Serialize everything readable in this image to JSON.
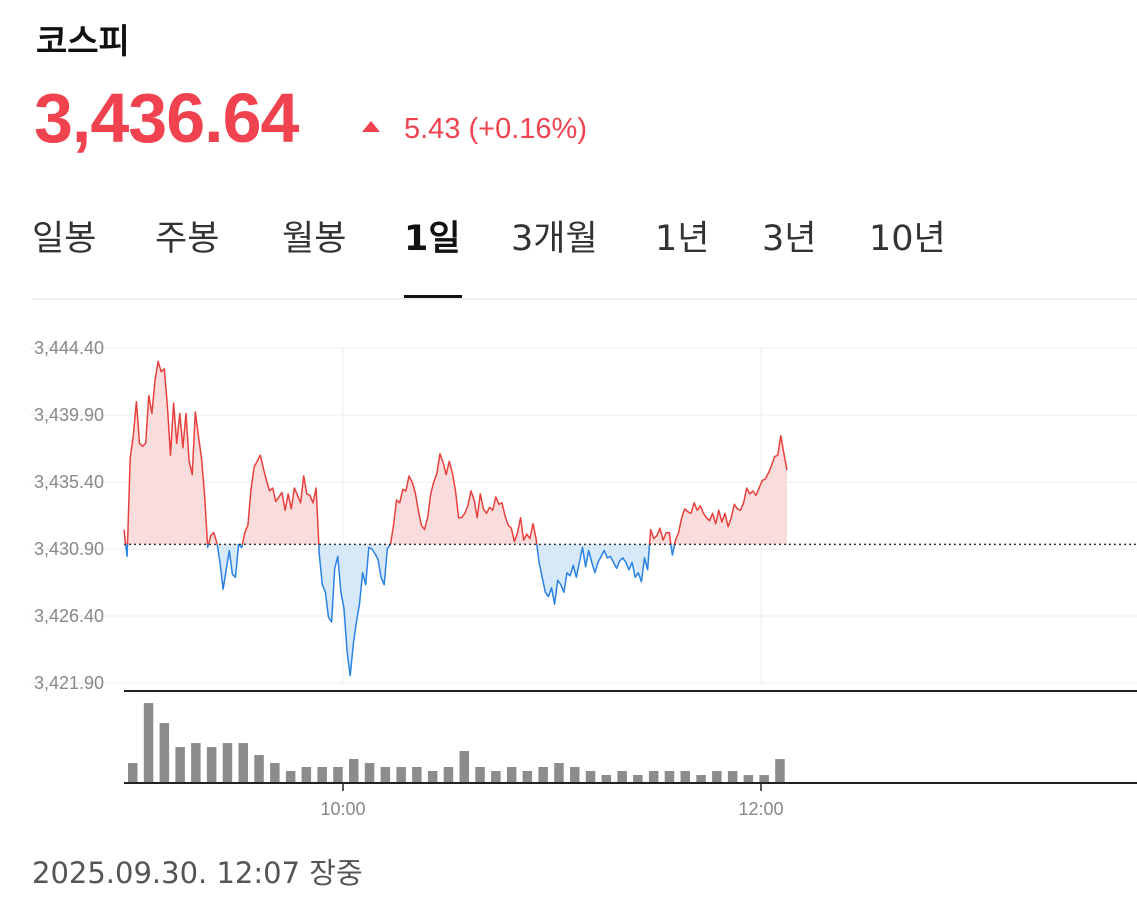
{
  "header": {
    "title": "코스피",
    "price": "3,436.64",
    "change": "5.43 (+0.16%)",
    "up_color": "#f0434f"
  },
  "tabs": [
    {
      "label": "일봉",
      "active": false
    },
    {
      "label": "주봉",
      "active": false
    },
    {
      "label": "월봉",
      "active": false
    },
    {
      "label": "1일",
      "active": true
    },
    {
      "label": "3개월",
      "active": false
    },
    {
      "label": "1년",
      "active": false
    },
    {
      "label": "3년",
      "active": false
    },
    {
      "label": "10년",
      "active": false
    }
  ],
  "footer": {
    "timestamp": "2025.09.30. 12:07 장중"
  },
  "chart_data": {
    "type": "area",
    "y_ticks": [
      "3,444.40",
      "3,439.90",
      "3,435.40",
      "3,430.90",
      "3,426.40",
      "3,421.90"
    ],
    "ylim": [
      3421.9,
      3444.4
    ],
    "x_ticks": [
      "10:00",
      "12:00"
    ],
    "baseline": 3431.21,
    "colors": {
      "up_line": "#e8413d",
      "up_fill": "#fbdcdc",
      "down_line": "#2a82e4",
      "down_fill": "#d7e8f9",
      "volume": "#8c8c8c"
    },
    "series": [
      {
        "values": [
          3432.2,
          3430.4,
          3437.0,
          3438.5,
          3440.8,
          3438.0,
          3437.8,
          3438.0,
          3441.2,
          3440.0,
          3442.2,
          3443.5,
          3442.8,
          3443.0,
          3440.5,
          3437.2,
          3440.7,
          3438.0,
          3440.0,
          3437.7,
          3440.0,
          3436.8,
          3435.9,
          3440.1,
          3438.5,
          3437.0,
          3434.5,
          3431.0,
          3431.8,
          3432.0,
          3431.3,
          3430.0,
          3428.2,
          3429.5,
          3430.8,
          3429.2,
          3429.0,
          3431.2,
          3431.0,
          3432.0,
          3432.5,
          3434.9,
          3436.4,
          3436.8,
          3437.2,
          3436.3,
          3435.5,
          3434.8,
          3435.0,
          3434.1,
          3434.4,
          3434.7,
          3433.5,
          3434.6,
          3433.6,
          3435.0,
          3434.5,
          3434.0,
          3435.8,
          3434.6,
          3434.5,
          3434.0,
          3435.0,
          3430.6,
          3428.5,
          3428.0,
          3426.3,
          3426.0,
          3429.6,
          3430.4,
          3428.0,
          3426.9,
          3424.0,
          3422.4,
          3424.5,
          3426.0,
          3427.2,
          3429.3,
          3428.5,
          3431.0,
          3430.9,
          3430.6,
          3430.2,
          3429.0,
          3428.5,
          3430.9,
          3431.2,
          3432.5,
          3434.2,
          3434.0,
          3434.9,
          3434.8,
          3435.8,
          3435.4,
          3434.7,
          3433.5,
          3432.5,
          3432.2,
          3433.0,
          3434.6,
          3435.4,
          3436.0,
          3437.3,
          3436.7,
          3435.9,
          3436.8,
          3436.0,
          3434.8,
          3433.0,
          3433.0,
          3433.3,
          3433.8,
          3434.8,
          3434.2,
          3433.0,
          3434.6,
          3433.6,
          3433.3,
          3433.7,
          3433.5,
          3434.4,
          3433.9,
          3434.0,
          3433.1,
          3432.5,
          3432.3,
          3431.4,
          3432.0,
          3433.0,
          3431.5,
          3431.9,
          3431.6,
          3432.6,
          3431.6,
          3430.0,
          3429.0,
          3428.0,
          3427.7,
          3428.3,
          3427.2,
          3428.8,
          3428.5,
          3428.0,
          3429.3,
          3429.1,
          3429.8,
          3429.0,
          3430.0,
          3431.0,
          3429.7,
          3430.8,
          3430.0,
          3429.3,
          3430.0,
          3430.4,
          3430.8,
          3430.3,
          3430.4,
          3430.0,
          3429.6,
          3430.1,
          3430.3,
          3430.0,
          3429.5,
          3430.0,
          3429.0,
          3429.3,
          3428.7,
          3430.3,
          3429.5,
          3432.2,
          3431.6,
          3431.8,
          3432.3,
          3431.5,
          3432.0,
          3432.0,
          3430.5,
          3431.5,
          3432.0,
          3433.0,
          3433.6,
          3433.4,
          3433.3,
          3434.0,
          3433.5,
          3433.8,
          3433.3,
          3433.0,
          3432.8,
          3433.3,
          3432.6,
          3433.5,
          3432.7,
          3433.3,
          3432.4,
          3433.0,
          3433.9,
          3433.6,
          3433.5,
          3434.0,
          3435.0,
          3434.6,
          3434.8,
          3434.5,
          3435.0,
          3435.5,
          3435.6,
          3436.0,
          3436.5,
          3437.1,
          3437.2,
          3438.5,
          3437.3,
          3436.2
        ]
      }
    ],
    "volume": [
      5,
      20,
      15,
      9,
      10,
      9,
      10,
      10,
      7,
      5,
      3,
      4,
      4,
      4,
      6,
      5,
      4,
      4,
      4,
      3,
      4,
      8,
      4,
      3,
      4,
      3,
      4,
      5,
      4,
      3,
      2,
      3,
      2,
      3,
      3,
      3,
      2,
      3,
      3,
      2,
      2,
      6
    ]
  }
}
